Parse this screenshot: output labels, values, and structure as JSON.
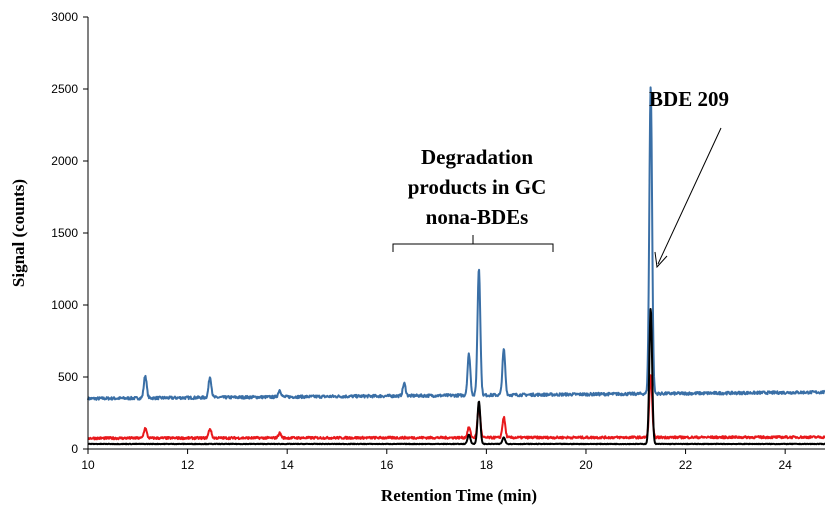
{
  "chart_data": {
    "type": "line",
    "title": "",
    "xlabel": "Retention Time (min)",
    "ylabel": "Signal (counts)",
    "xlim": [
      10,
      24.8
    ],
    "ylim": [
      0,
      3000
    ],
    "x_ticks": [
      10,
      12,
      14,
      16,
      18,
      20,
      22,
      24
    ],
    "y_ticks": [
      0,
      500,
      1000,
      1500,
      2000,
      2500,
      3000
    ],
    "grid": false,
    "legend": "none",
    "series": [
      {
        "color": "#3a6fa6",
        "baseline": 350,
        "baseline_drift_per_min": 3,
        "noise": 10,
        "peaks": [
          {
            "x": 11.15,
            "y": 510
          },
          {
            "x": 12.45,
            "y": 500
          },
          {
            "x": 13.85,
            "y": 410
          },
          {
            "x": 16.35,
            "y": 455
          },
          {
            "x": 17.65,
            "y": 660
          },
          {
            "x": 17.85,
            "y": 1255
          },
          {
            "x": 18.35,
            "y": 690
          },
          {
            "x": 21.3,
            "y": 2525
          }
        ]
      },
      {
        "color": "#e8191c",
        "baseline": 75,
        "baseline_drift_per_min": 0.5,
        "noise": 8,
        "peaks": [
          {
            "x": 11.15,
            "y": 145
          },
          {
            "x": 12.45,
            "y": 140
          },
          {
            "x": 13.85,
            "y": 110
          },
          {
            "x": 17.65,
            "y": 150
          },
          {
            "x": 17.85,
            "y": 300
          },
          {
            "x": 18.35,
            "y": 220
          },
          {
            "x": 21.3,
            "y": 520
          }
        ]
      },
      {
        "color": "#000000",
        "baseline": 35,
        "baseline_drift_per_min": 0,
        "noise": 2,
        "peaks": [
          {
            "x": 17.65,
            "y": 100
          },
          {
            "x": 17.85,
            "y": 330
          },
          {
            "x": 18.35,
            "y": 80
          },
          {
            "x": 21.3,
            "y": 975
          }
        ]
      }
    ],
    "annotations": [
      {
        "id": "bde209",
        "lines": [
          "BDE 209"
        ]
      },
      {
        "id": "degradation",
        "lines": [
          "Degradation",
          "products in GC",
          "nona-BDEs"
        ]
      }
    ]
  }
}
